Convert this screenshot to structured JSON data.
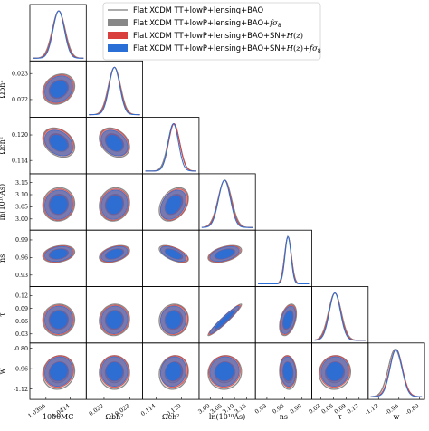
{
  "chart_data": {
    "type": "triangle",
    "parameters": [
      {
        "label": "100θMC",
        "ticks": [
          "1.0396",
          "1.0414"
        ],
        "range": [
          1.0386,
          1.0424
        ],
        "mean": 1.04055,
        "sigma": 0.00045
      },
      {
        "label": "Ωbh²",
        "ticks": [
          "0.022",
          "0.023"
        ],
        "range": [
          0.02142,
          0.02338
        ],
        "mean": 0.0224,
        "sigma": 0.00022
      },
      {
        "label": "Ωch²",
        "ticks": [
          "0.114",
          "0.120"
        ],
        "range": [
          0.1115,
          0.1235
        ],
        "mean": 0.1182,
        "sigma": 0.0013
      },
      {
        "label": "ln(10¹⁰As)",
        "ticks": [
          "3.00",
          "3.05",
          "3.10",
          "3.15"
        ],
        "range": [
          2.965,
          3.175
        ],
        "mean": 3.06,
        "sigma": 0.026
      },
      {
        "label": "ns",
        "ticks": [
          "0.93",
          "0.96",
          "0.99"
        ],
        "range": [
          0.915,
          1.002
        ],
        "mean": 0.966,
        "sigma": 0.0055
      },
      {
        "label": "τ",
        "ticks": [
          "0.03",
          "0.06",
          "0.09",
          "0.12"
        ],
        "range": [
          0.015,
          0.135
        ],
        "mean": 0.063,
        "sigma": 0.014
      },
      {
        "label": "w",
        "ticks": [
          "-1.12",
          "-0.96",
          "-0.80"
        ],
        "range": [
          -1.18,
          -0.78
        ],
        "mean": -0.99,
        "sigma": 0.05
      }
    ],
    "y_row_labels": [
      "Ωbh²",
      "Ωch²",
      "ln(10¹⁰As)",
      "ns",
      "τ",
      "w"
    ],
    "y_tick_labels": [
      [
        "0.023",
        "0.022"
      ],
      [
        "0.120",
        "0.114"
      ],
      [
        "3.15",
        "3.10",
        "3.05",
        "3.00"
      ],
      [
        "0.99",
        "0.96",
        "0.93"
      ],
      [
        "0.12",
        "0.09",
        "0.06",
        "0.03"
      ],
      [
        "-0.80",
        "-0.96",
        "-1.12"
      ]
    ],
    "correlations": [
      [
        1,
        0.2,
        -0.3,
        0.05,
        0.25,
        0.02,
        0.1
      ],
      [
        0.2,
        1,
        -0.3,
        0.1,
        0.4,
        0.05,
        0.0
      ],
      [
        -0.3,
        -0.3,
        1,
        0.35,
        -0.6,
        0.05,
        0.1
      ],
      [
        0.05,
        0.1,
        0.35,
        1,
        0.45,
        0.96,
        0.05
      ],
      [
        0.25,
        0.4,
        -0.6,
        0.45,
        1,
        0.4,
        -0.1
      ],
      [
        0.02,
        0.05,
        0.05,
        0.96,
        0.4,
        1,
        0.05
      ],
      [
        0.1,
        0.0,
        0.1,
        0.05,
        -0.1,
        0.05,
        1
      ]
    ],
    "series": [
      {
        "name": "Flat XCDM TT+lowP+lensing+BAO",
        "color": "#7a7a7a",
        "style": "line",
        "scale": 1.05,
        "shift": [
          0,
          0,
          0,
          0,
          0,
          0,
          0
        ]
      },
      {
        "name": "Flat XCDM TT+lowP+lensing+BAO+fσ8",
        "color": "#888888",
        "style": "filled",
        "scale": 1.08,
        "shift": [
          0,
          0,
          0,
          0,
          0,
          0,
          0
        ]
      },
      {
        "name": "Flat XCDM TT+lowP+lensing+BAO+SN+H(z)",
        "color": "#d9403d",
        "style": "filled",
        "scale": 1.0,
        "shift": [
          0,
          0,
          0.06,
          -0.03,
          0,
          0,
          0.15
        ]
      },
      {
        "name": "Flat XCDM TT+lowP+lensing+BAO+SN+H(z)+fσ8",
        "color": "#2a6fd6",
        "style": "filled",
        "scale": 0.93,
        "shift": [
          0,
          0,
          -0.08,
          -0.05,
          0,
          0,
          0.15
        ]
      }
    ]
  }
}
